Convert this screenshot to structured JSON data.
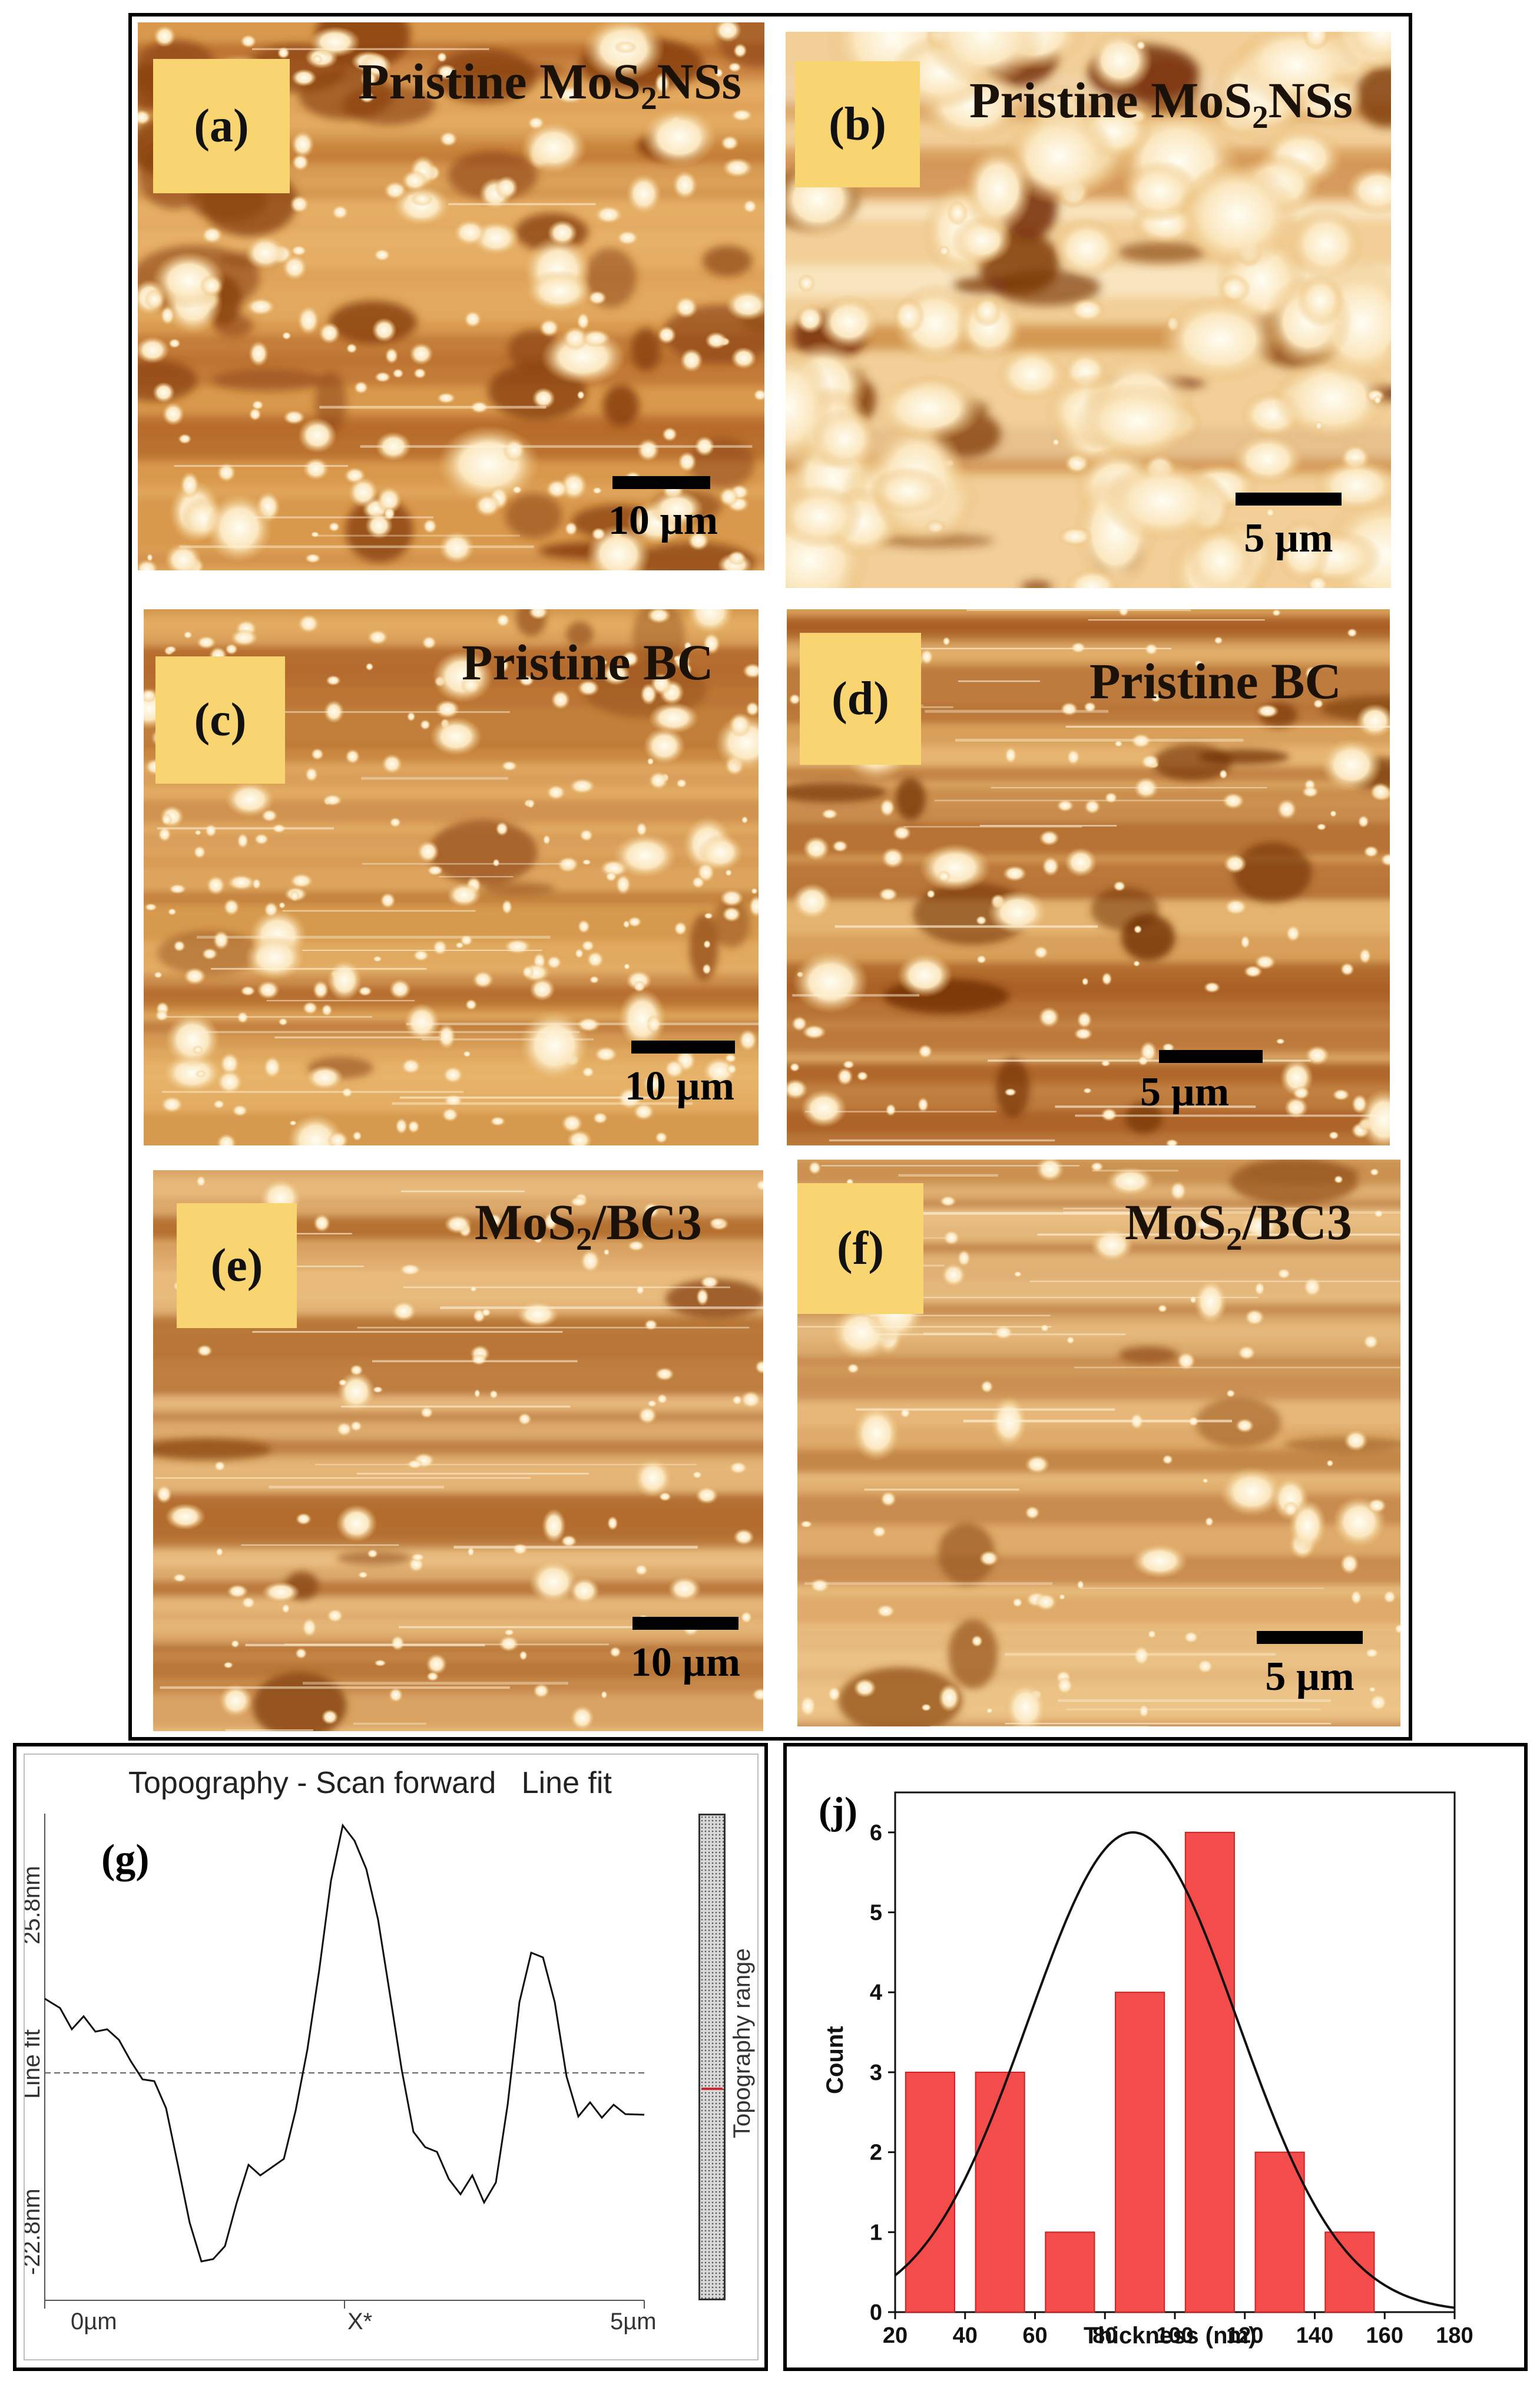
{
  "panels": {
    "a": {
      "tag": "(a)",
      "title_pre": "Pristine MoS",
      "title_sub": "2",
      "title_post": "NSs",
      "scale": "10 µm"
    },
    "b": {
      "tag": "(b)",
      "title_pre": "Pristine MoS",
      "title_sub": "2",
      "title_post": "NSs",
      "scale": "5 µm"
    },
    "c": {
      "tag": "(c)",
      "title_pre": "Pristine BC",
      "title_sub": "",
      "title_post": "",
      "scale": "10 µm"
    },
    "d": {
      "tag": "(d)",
      "title_pre": "Pristine BC",
      "title_sub": "",
      "title_post": "",
      "scale": "5 µm"
    },
    "e": {
      "tag": "(e)",
      "title_pre": "MoS",
      "title_sub": "2",
      "title_post": "/BC3",
      "scale": "10 µm"
    },
    "f": {
      "tag": "(f)",
      "title_pre": "MoS",
      "title_sub": "2",
      "title_post": "/BC3",
      "scale": "5 µm"
    }
  },
  "profile": {
    "tag": "(g)",
    "title": "Topography - Scan forward   Line fit",
    "y_top": "25.8nm",
    "y_bottom": "-22.8nm",
    "y_label": "Line fit",
    "x_left": "0µm",
    "x_mid": "X*",
    "x_right": "5µm",
    "range_label": "Topography range"
  },
  "chart_data": {
    "type": "bar",
    "tag": "(j)",
    "xlabel": "Thickness (nm)",
    "ylabel": "Count",
    "xlim": [
      20,
      180
    ],
    "ylim": [
      0,
      6.5
    ],
    "x_ticks": [
      "20",
      "40",
      "60",
      "80",
      "100",
      "120",
      "140",
      "160",
      "180"
    ],
    "y_ticks": [
      "0",
      "1",
      "2",
      "3",
      "4",
      "5",
      "6"
    ],
    "bins": [
      {
        "from": 23,
        "to": 37,
        "count": 3
      },
      {
        "from": 43,
        "to": 57,
        "count": 3
      },
      {
        "from": 63,
        "to": 77,
        "count": 1
      },
      {
        "from": 83,
        "to": 97,
        "count": 4
      },
      {
        "from": 103,
        "to": 117,
        "count": 6
      },
      {
        "from": 123,
        "to": 137,
        "count": 2
      },
      {
        "from": 143,
        "to": 157,
        "count": 1
      }
    ],
    "fit": {
      "type": "gaussian",
      "peak_x": 88,
      "peak_y": 6.0,
      "sigma": 30
    },
    "bar_color": "#f44b4b"
  }
}
